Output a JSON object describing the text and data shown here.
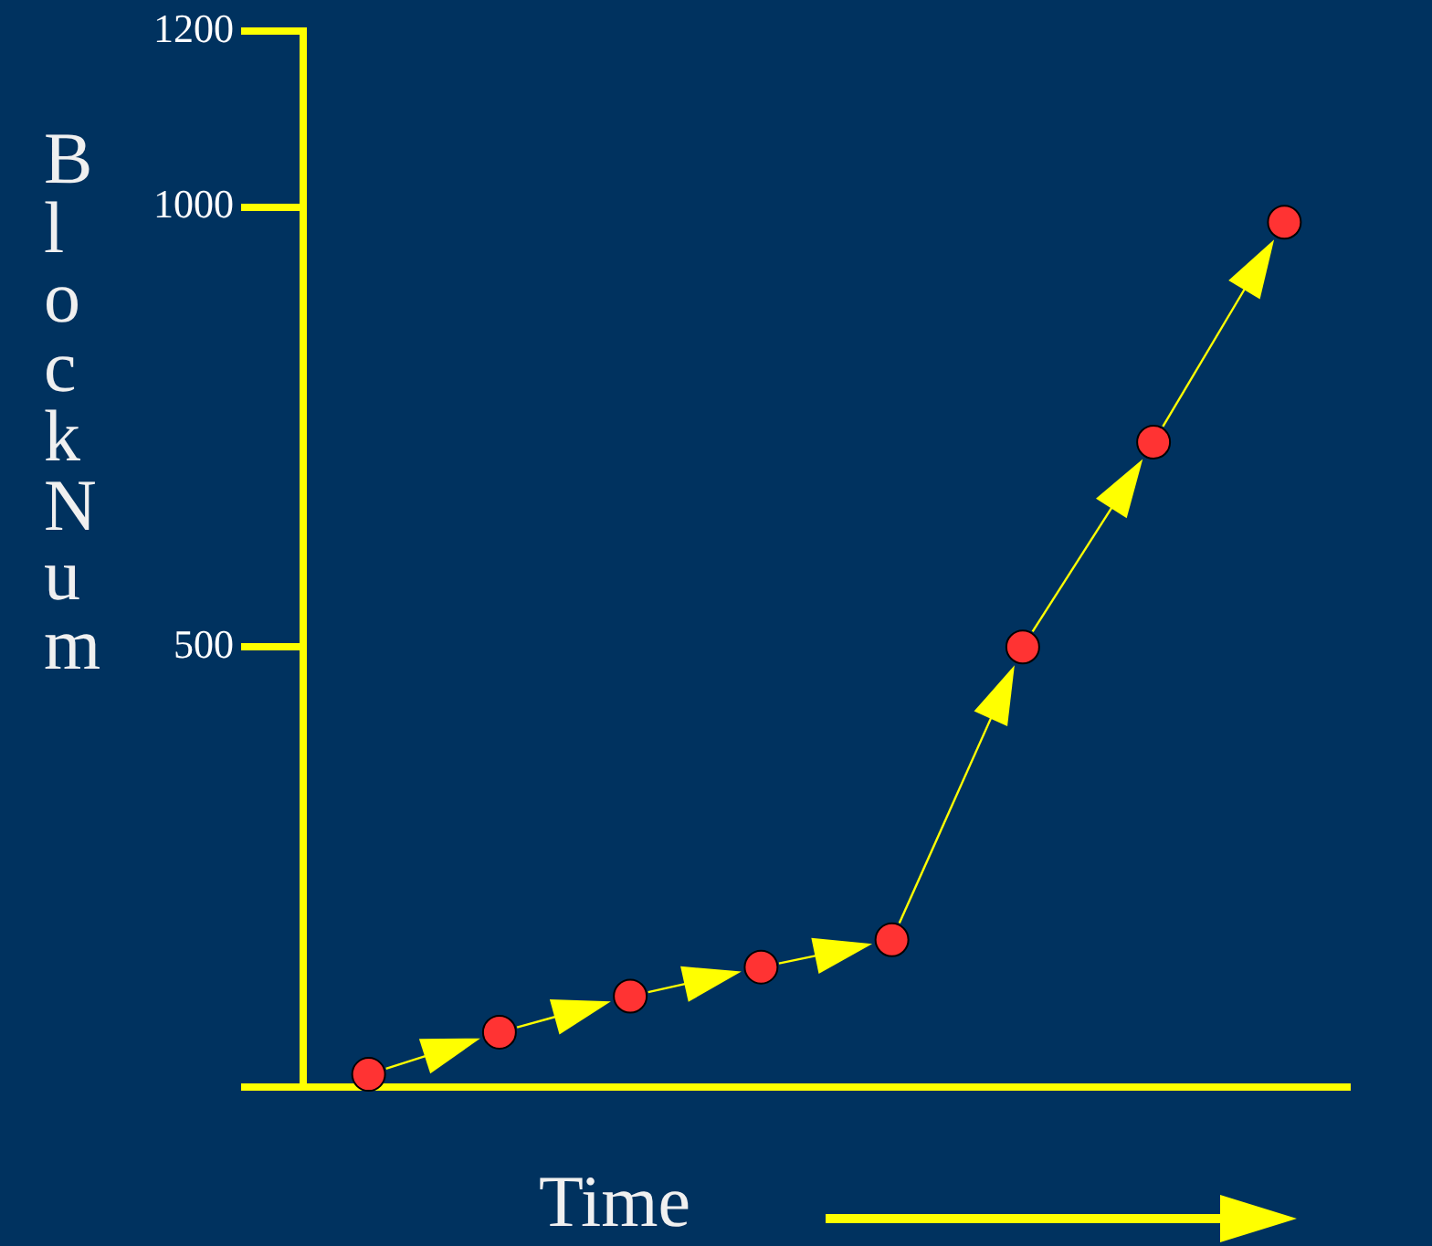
{
  "chart_data": {
    "type": "scatter",
    "xlabel": "Time",
    "ylabel": "Block Num",
    "categories": [
      null,
      null,
      null,
      null,
      null,
      null,
      null,
      null
    ],
    "series": [
      {
        "color": "#ff3333",
        "values": [
          14,
          62,
          103,
          136,
          167,
          500,
          733,
          983
        ]
      }
    ],
    "ylim": [
      0,
      1200
    ],
    "yticks": [
      {
        "value": 0,
        "label": null
      },
      500,
      1000,
      1200
    ],
    "marker": "circle",
    "grid": false,
    "legend": false,
    "tick_labels": "y"
  }
}
